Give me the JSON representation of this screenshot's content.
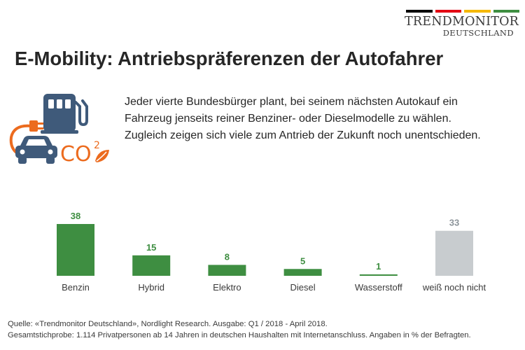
{
  "brand": {
    "name": "TRENDMONITOR",
    "sub": "DEUTSCHLAND",
    "bar_colors": [
      "#000000",
      "#e30613",
      "#f5b800",
      "#3e8e41"
    ]
  },
  "title": "E-Mobility: Antriebspräferenzen der Autofahrer",
  "intro": "Jeder vierte Bundesbürger plant, bei seinem nächsten Autokauf ein Fahrzeug jenseits reiner Benziner- oder Dieselmodelle zu wählen. Zugleich zeigen sich viele zum Antrieb der Zukunft noch unentschieden.",
  "icons": [
    "fuel-pump-icon",
    "charging-plug-icon",
    "car-icon",
    "co2-leaf-icon"
  ],
  "colors": {
    "bar_green": "#3e8e41",
    "bar_grey": "#c8cccf",
    "label_green": "#3e8e41",
    "label_grey": "#8c949a",
    "icon_blue": "#3f5a7a",
    "icon_orange": "#ec6b1e"
  },
  "chart_data": {
    "type": "bar",
    "categories": [
      "Benzin",
      "Hybrid",
      "Elektro",
      "Diesel",
      "Wasserstoff",
      "weiß noch nicht"
    ],
    "values": [
      38,
      15,
      8,
      5,
      1,
      33
    ],
    "value_labels": [
      "38",
      "15",
      "8",
      "5",
      "1",
      "33"
    ],
    "bar_colors": [
      "#3e8e41",
      "#3e8e41",
      "#3e8e41",
      "#3e8e41",
      "#3e8e41",
      "#c8cccf"
    ],
    "label_colors": [
      "#3e8e41",
      "#3e8e41",
      "#3e8e41",
      "#3e8e41",
      "#3e8e41",
      "#8c949a"
    ],
    "ylim": [
      0,
      38
    ],
    "grid": false,
    "title": "",
    "xlabel": "",
    "ylabel": ""
  },
  "footer": {
    "line1": "Quelle: «Trendmonitor Deutschland», Nordlight Research. Ausgabe: Q1 / 2018 - April 2018.",
    "line2": "Gesamtstichprobe: 1.114 Privatpersonen ab 14 Jahren in deutschen Haushalten mit Internetanschluss. Angaben in % der Befragten."
  }
}
